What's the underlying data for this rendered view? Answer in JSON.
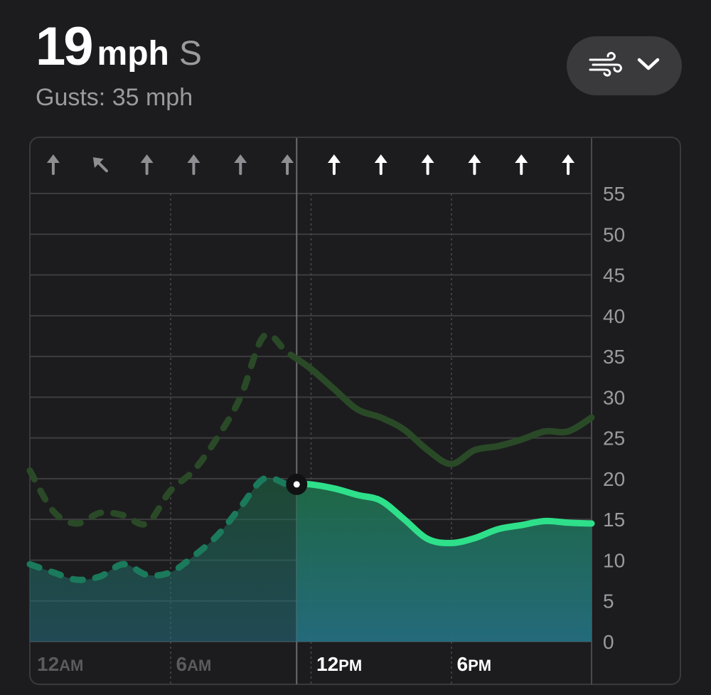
{
  "header": {
    "speed_value": "19",
    "speed_unit": "mph",
    "direction": "S",
    "gusts_text": "Gusts: 35 mph"
  },
  "menu": {
    "icon": "wind-icon",
    "chevron": "chevron-down-icon"
  },
  "colors": {
    "background": "#1c1c1e",
    "wind_line": "#2ee08a",
    "gust_line": "#2a4a27",
    "area_top": "#1e6b45",
    "area_bottom": "#246e80",
    "past_arrow": "#8e8e93",
    "future_arrow": "#ffffff"
  },
  "chart_data": {
    "type": "line",
    "y_unit": "mph",
    "ylim": [
      0,
      55
    ],
    "y_ticks": [
      "0",
      "5",
      "10",
      "15",
      "20",
      "25",
      "30",
      "35",
      "40",
      "45",
      "50",
      "55"
    ],
    "x_ticks": [
      {
        "hour": 0,
        "label": "12",
        "suffix": "AM"
      },
      {
        "hour": 6,
        "label": "6",
        "suffix": "AM"
      },
      {
        "hour": 12,
        "label": "12",
        "suffix": "PM"
      },
      {
        "hour": 18,
        "label": "6",
        "suffix": "PM"
      }
    ],
    "current_hour": 11.4,
    "grid": true,
    "direction_arrows": [
      {
        "hour": 1,
        "direction_deg": 0
      },
      {
        "hour": 3,
        "direction_deg": -45
      },
      {
        "hour": 5,
        "direction_deg": 0
      },
      {
        "hour": 7,
        "direction_deg": 0
      },
      {
        "hour": 9,
        "direction_deg": 0
      },
      {
        "hour": 11,
        "direction_deg": 0
      },
      {
        "hour": 13,
        "direction_deg": 0
      },
      {
        "hour": 15,
        "direction_deg": 0
      },
      {
        "hour": 17,
        "direction_deg": 0
      },
      {
        "hour": 19,
        "direction_deg": 0
      },
      {
        "hour": 21,
        "direction_deg": 0
      },
      {
        "hour": 23,
        "direction_deg": 0
      }
    ],
    "series": [
      {
        "key": "wind",
        "x": [
          0,
          1,
          2,
          3,
          4,
          5,
          6,
          7,
          8,
          9,
          10,
          11,
          11.4,
          12,
          13,
          14,
          15,
          16,
          17,
          18,
          19,
          20,
          21,
          22,
          23,
          24
        ],
        "values": [
          9.5,
          8.5,
          7.6,
          8.0,
          9.5,
          8.2,
          8.5,
          10.5,
          13,
          16.5,
          20,
          19.3,
          19.3,
          19.3,
          18.8,
          18,
          17.3,
          15,
          12.6,
          12.1,
          12.7,
          13.8,
          14.3,
          14.8,
          14.6,
          14.5
        ]
      },
      {
        "key": "gusts",
        "x": [
          0,
          1,
          2,
          3,
          4,
          5,
          6,
          7,
          8,
          9,
          10,
          11,
          12,
          13,
          14,
          15,
          16,
          17,
          18,
          19,
          20,
          21,
          22,
          23,
          24
        ],
        "values": [
          21,
          16,
          14.5,
          15.8,
          15.5,
          14.5,
          18.5,
          21,
          25,
          30,
          37.5,
          35.5,
          33.5,
          31,
          28.5,
          27.5,
          26,
          23.5,
          21.8,
          23.5,
          24,
          24.8,
          25.8,
          25.8,
          27.5
        ]
      }
    ]
  }
}
